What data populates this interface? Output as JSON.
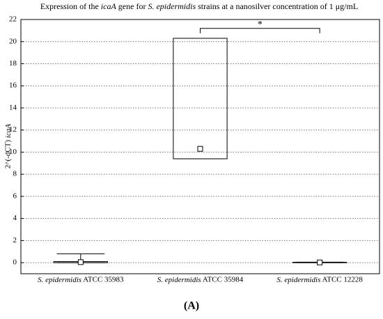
{
  "chart_data": {
    "type": "box",
    "title": "Expression of the icaA gene for S. epidermidis strains at a nanosilver concentration of 1 μg/mL",
    "title_italic": [
      "icaA",
      "S. epidermidis"
    ],
    "ylabel": "2^(-dCT) icaA",
    "categories": [
      "S. epidermidis ATCC 35983",
      "S. epidermidis ATCC 35984",
      "S. epidermidis ATCC 12228"
    ],
    "median": [
      0.05,
      10.3,
      0.02
    ],
    "q1": [
      0,
      9.4,
      0
    ],
    "q3": [
      0.1,
      20.3,
      0.04
    ],
    "whisker_low": [
      0,
      9.4,
      0
    ],
    "whisker_high": [
      0.8,
      20.3,
      0.05
    ],
    "ylim": [
      -1,
      22
    ],
    "yticks": [
      0,
      2,
      4,
      6,
      8,
      10,
      12,
      14,
      16,
      18,
      20,
      22
    ],
    "grid": true,
    "color": "#000000",
    "annotations": [
      {
        "text": "*",
        "from": 1,
        "to": 2,
        "y": 21.2
      }
    ],
    "caption": "(A)"
  }
}
